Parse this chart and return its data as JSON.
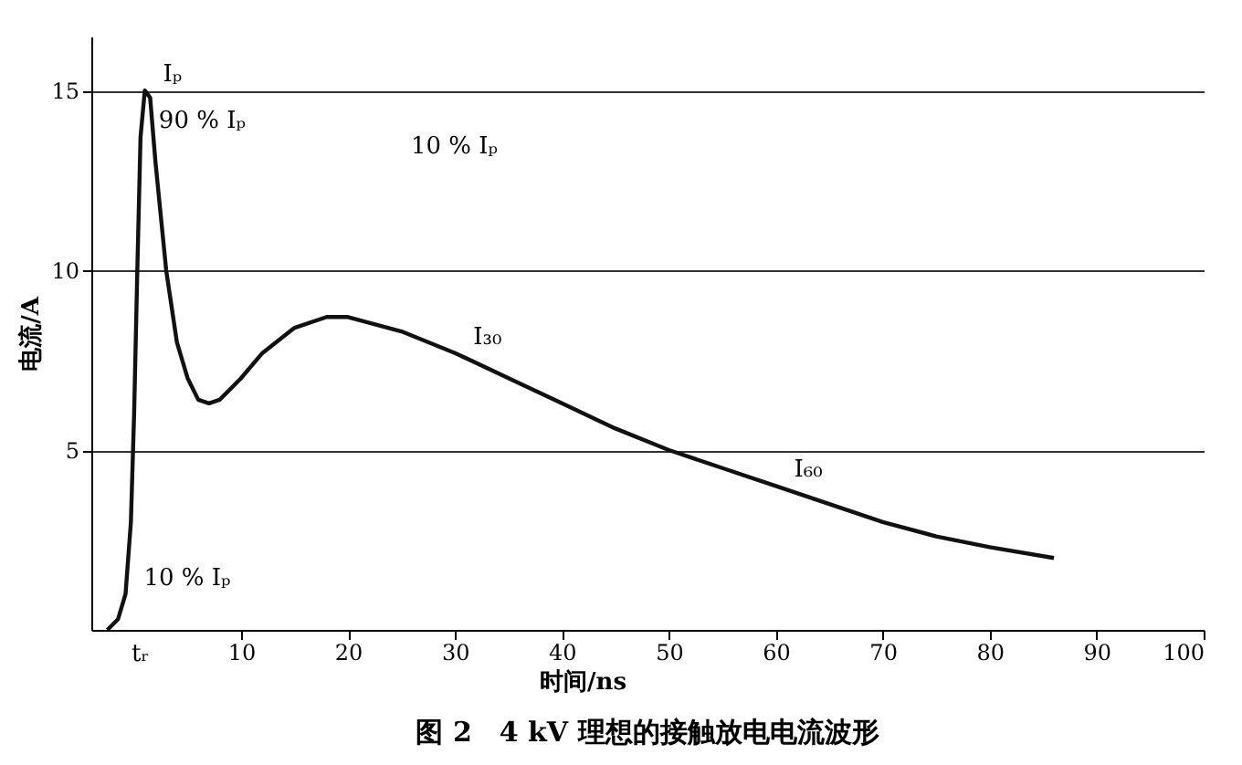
{
  "chart_data": {
    "type": "line",
    "title": "图 2　4 kV 理想的接触放电电流波形",
    "xlabel": "时间/ns",
    "ylabel": "电流/A",
    "xlim": [
      -4,
      100
    ],
    "xticks": [
      10,
      20,
      30,
      40,
      50,
      60,
      70,
      80,
      90,
      100
    ],
    "ylim": [
      0,
      16.5
    ],
    "yticks": [
      5,
      10,
      15
    ],
    "grid": "y",
    "series": [
      {
        "color": "#111111",
        "x": [
          -2.5,
          -1.5,
          -0.8,
          -0.3,
          0,
          0.3,
          0.6,
          1,
          1.5,
          2,
          3,
          4,
          5,
          6,
          7,
          8,
          10,
          12,
          15,
          18,
          20,
          25,
          30,
          35,
          40,
          45,
          50,
          55,
          60,
          65,
          70,
          75,
          80,
          86
        ],
        "values": [
          0,
          0.3,
          1,
          3,
          6,
          10,
          13.7,
          15,
          14.8,
          13,
          10,
          8,
          7,
          6.4,
          6.3,
          6.4,
          7,
          7.7,
          8.4,
          8.7,
          8.7,
          8.3,
          7.7,
          7,
          6.3,
          5.6,
          5.0,
          4.5,
          4.0,
          3.5,
          3.0,
          2.6,
          2.3,
          2.0
        ]
      }
    ],
    "annotations": [
      {
        "text": "Iₚ",
        "x": 1,
        "y": 15
      },
      {
        "text": "90 % Iₚ",
        "x": 0.6,
        "y": 13.7
      },
      {
        "text": "10 % Iₚ",
        "x": -0.8,
        "y": 1
      },
      {
        "text": "I₃₀",
        "x": 30,
        "y": 7.7
      },
      {
        "text": "I₆₀",
        "x": 60,
        "y": 4.0
      },
      "10 % Iₚ",
      "tᵣ"
    ]
  }
}
